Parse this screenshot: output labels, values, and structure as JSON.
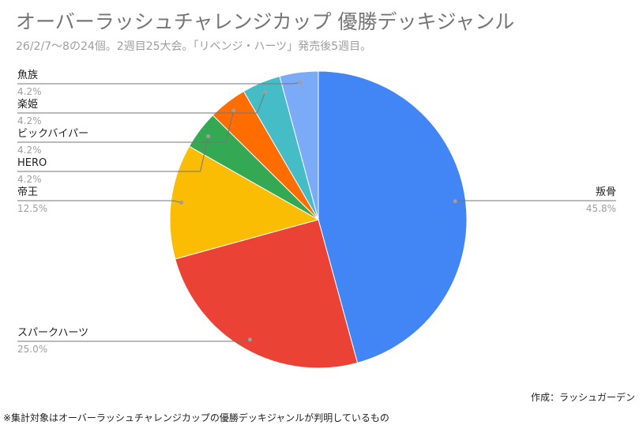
{
  "title": "オーバーラッシュチャレンジカップ 優勝デッキジャンル",
  "subtitle": "26/2/7〜8の24個。2週目25大会。「リベンジ・ハーツ」発売後5週目。",
  "credit": "作成：ラッシュガーデン",
  "footnote": "※集計対象はオーバーラッシュチャレンジカップの優勝デッキジャンルが判明しているもの",
  "chart_data": {
    "type": "pie",
    "slices": [
      {
        "name": "叛骨",
        "value": 45.8,
        "pct_label": "45.8%",
        "color": "#4285f4"
      },
      {
        "name": "スパークハーツ",
        "value": 25.0,
        "pct_label": "25.0%",
        "color": "#ea4335"
      },
      {
        "name": "帝王",
        "value": 12.5,
        "pct_label": "12.5%",
        "color": "#fbbc04"
      },
      {
        "name": "HERO",
        "value": 4.2,
        "pct_label": "4.2%",
        "color": "#34a853"
      },
      {
        "name": "ビックバイパー",
        "value": 4.2,
        "pct_label": "4.2%",
        "color": "#ff6d01"
      },
      {
        "name": "楽姫",
        "value": 4.2,
        "pct_label": "4.2%",
        "color": "#46bdc6"
      },
      {
        "name": "魚族",
        "value": 4.2,
        "pct_label": "4.2%",
        "color": "#7baaf7"
      }
    ]
  }
}
